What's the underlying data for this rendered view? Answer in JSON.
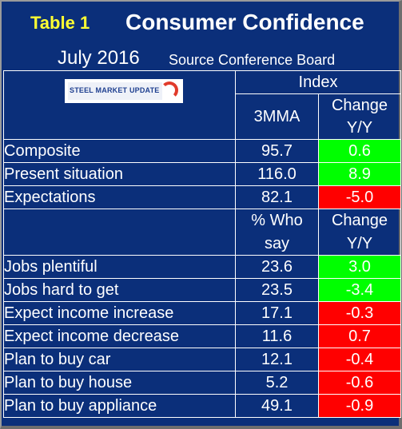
{
  "header": {
    "tag": "Table 1",
    "title": "Consumer Confidence",
    "date": "July 2016",
    "source": "Source Conference Board"
  },
  "logo": {
    "text": "STEEL MARKET UPDATE"
  },
  "section1": {
    "group_label": "Index",
    "col1": "3MMA",
    "col2_line1": "Change",
    "col2_line2": "Y/Y",
    "rows": [
      {
        "name": "Composite",
        "value": "95.7",
        "change": "0.6",
        "status": "positive"
      },
      {
        "name": "Present situation",
        "value": "116.0",
        "change": "8.9",
        "status": "positive"
      },
      {
        "name": "Expectations",
        "value": "82.1",
        "change": "-5.0",
        "status": "negative"
      }
    ]
  },
  "section2": {
    "col1_line1": "% Who",
    "col1_line2": "say",
    "col2_line1": "Change",
    "col2_line2": "Y/Y",
    "rows": [
      {
        "name": "Jobs plentiful",
        "value": "23.6",
        "change": "3.0",
        "status": "positive"
      },
      {
        "name": "Jobs hard to get",
        "value": "23.5",
        "change": "-3.4",
        "status": "positive"
      },
      {
        "name": "Expect income increase",
        "value": "17.1",
        "change": "-0.3",
        "status": "negative"
      },
      {
        "name": "Expect income decrease",
        "value": "11.6",
        "change": "0.7",
        "status": "negative"
      },
      {
        "name": "Plan to buy car",
        "value": "12.1",
        "change": "-0.4",
        "status": "negative"
      },
      {
        "name": "Plan to buy house",
        "value": "5.2",
        "change": "-0.6",
        "status": "negative"
      },
      {
        "name": "Plan to buy appliance",
        "value": "49.1",
        "change": "-0.9",
        "status": "negative"
      }
    ]
  },
  "colors": {
    "background": "#0b2f7a",
    "positive": "#00ff00",
    "negative": "#ff0000",
    "tag": "#ffff33"
  }
}
